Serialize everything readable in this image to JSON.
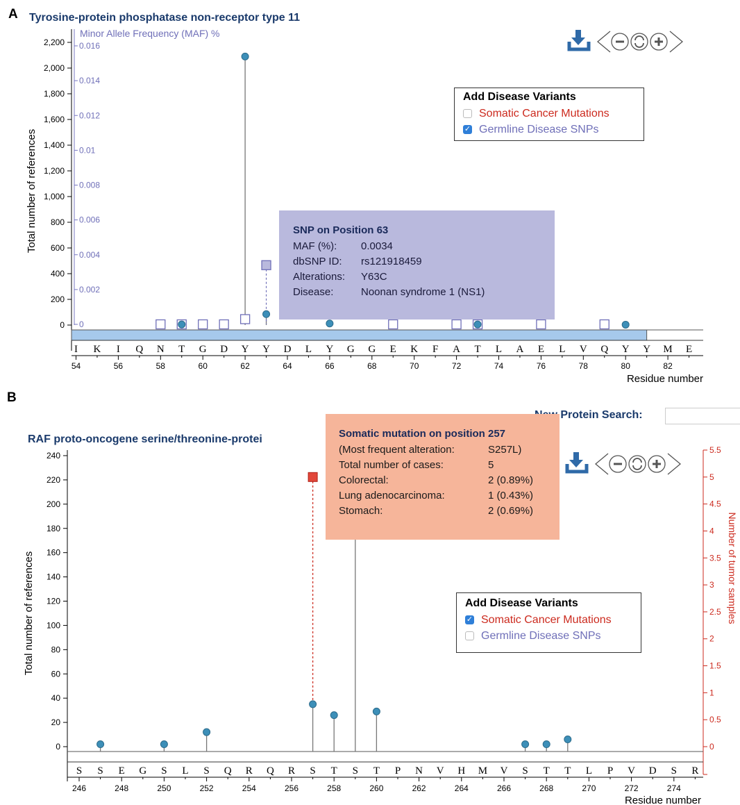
{
  "figure": {
    "panel_a_letter": "A",
    "panel_b_letter": "B"
  },
  "panel_a": {
    "title": "Tyrosine-protein phosphatase non-receptor type 11",
    "legend": {
      "title": "Add Disease Variants",
      "items": [
        {
          "label": "Somatic Cancer Mutations",
          "checked": false,
          "color": "#cc2a1e"
        },
        {
          "label": "Germline Disease SNPs",
          "checked": true,
          "color": "#6f6fb8"
        }
      ]
    },
    "tooltip": {
      "title": "SNP on Position 63",
      "rows": [
        {
          "key": "MAF (%):",
          "value": "0.0034"
        },
        {
          "key": "dbSNP ID:",
          "value": "rs121918459"
        },
        {
          "key": "Alterations:",
          "value": "Y63C"
        },
        {
          "key": "Disease:",
          "value": "Noonan syndrome 1 (NS1)"
        }
      ]
    },
    "toolbar": {
      "icons": [
        "download-icon",
        "pan-left-icon",
        "zoom-out-icon",
        "reset-icon",
        "zoom-in-icon",
        "pan-right-icon"
      ]
    }
  },
  "panel_b": {
    "title": "RAF proto-oncogene serine/threonine-protei",
    "search_label": "New Protein Search:",
    "search_value": "",
    "legend": {
      "title": "Add Disease Variants",
      "items": [
        {
          "label": "Somatic Cancer Mutations",
          "checked": true,
          "color": "#cc2a1e"
        },
        {
          "label": "Germline Disease SNPs",
          "checked": false,
          "color": "#6f6fb8"
        }
      ]
    },
    "tooltip": {
      "title": "Somatic mutation on position 257",
      "rows": [
        {
          "key": "(Most frequent alteration:",
          "value": "S257L)"
        },
        {
          "key": "Total number of cases:",
          "value": "5"
        },
        {
          "key": "Colorectal:",
          "value": "2 (0.89%)"
        },
        {
          "key": "Lung adenocarcinoma:",
          "value": "1 (0.43%)"
        },
        {
          "key": "Stomach:",
          "value": "2 (0.69%)"
        }
      ]
    },
    "toolbar": {
      "icons": [
        "download-icon",
        "pan-left-icon",
        "zoom-out-icon",
        "reset-icon",
        "zoom-in-icon",
        "pan-right-icon"
      ]
    }
  },
  "chart_data": [
    {
      "type": "scatter",
      "title": "Tyrosine-protein phosphatase non-receptor type 11",
      "ylabel": "Total number of references",
      "y2label": "Minor Allele Frequency (MAF) %",
      "xlabel": "Residue number",
      "ylim": [
        0,
        2200
      ],
      "y2lim": [
        0,
        0.016
      ],
      "xlim": [
        54,
        84
      ],
      "yticks": [
        0,
        200,
        400,
        600,
        800,
        1000,
        1200,
        1400,
        1600,
        1800,
        2000,
        2200
      ],
      "ytick_labels": [
        "0",
        "200",
        "400",
        "600",
        "800",
        "1,000",
        "1,200",
        "1,400",
        "1,600",
        "1,800",
        "2,000",
        "2,200"
      ],
      "y2ticks": [
        0,
        0.002,
        0.004,
        0.006,
        0.008,
        0.01,
        0.012,
        0.014,
        0.016
      ],
      "y2tick_labels": [
        "0",
        "0.002",
        "0.004",
        "0.006",
        "0.008",
        "0.01",
        "0.012",
        "0.014",
        "0.016"
      ],
      "xticks": [
        54,
        56,
        58,
        60,
        62,
        64,
        66,
        68,
        70,
        72,
        74,
        76,
        78,
        80,
        82
      ],
      "sequence_start": 54,
      "sequence": [
        "I",
        "K",
        "I",
        "Q",
        "N",
        "T",
        "G",
        "D",
        "Y",
        "Y",
        "D",
        "L",
        "Y",
        "G",
        "G",
        "E",
        "K",
        "F",
        "A",
        "T",
        "L",
        "A",
        "E",
        "L",
        "V",
        "Q",
        "Y",
        "Y",
        "M",
        "E"
      ],
      "domain_bar": {
        "start": 54,
        "end": 81
      },
      "series": [
        {
          "name": "References",
          "marker": "circle",
          "color": "#3d8fb8",
          "points": [
            {
              "x": 59,
              "y": 5
            },
            {
              "x": 62,
              "y": 2090
            },
            {
              "x": 63,
              "y": 85
            },
            {
              "x": 66,
              "y": 12
            },
            {
              "x": 73,
              "y": 5
            },
            {
              "x": 80,
              "y": 3
            }
          ]
        },
        {
          "name": "Germline Disease SNPs",
          "marker": "square",
          "color": "#6f6fb8",
          "points": [
            {
              "x": 58,
              "y2": 0
            },
            {
              "x": 59,
              "y2": 0
            },
            {
              "x": 60,
              "y2": 0
            },
            {
              "x": 61,
              "y2": 0
            },
            {
              "x": 62,
              "y2": 0.0003
            },
            {
              "x": 63,
              "y2": 0.0034,
              "highlight": true
            },
            {
              "x": 69,
              "y2": 0
            },
            {
              "x": 72,
              "y2": 0
            },
            {
              "x": 73,
              "y2": 0
            },
            {
              "x": 76,
              "y2": 0
            },
            {
              "x": 79,
              "y2": 0
            }
          ]
        }
      ]
    },
    {
      "type": "scatter",
      "title": "RAF proto-oncogene serine/threonine-protei",
      "ylabel": "Total number of references",
      "y2label": "Number of tumor samples",
      "xlabel": "Residue number",
      "ylim": [
        0,
        240
      ],
      "y2lim": [
        0,
        5.5
      ],
      "xlim": [
        245.5,
        275.5
      ],
      "yticks": [
        0,
        20,
        40,
        60,
        80,
        100,
        120,
        140,
        160,
        180,
        200,
        220,
        240
      ],
      "ytick_labels": [
        "0",
        "20",
        "40",
        "60",
        "80",
        "100",
        "120",
        "140",
        "160",
        "180",
        "200",
        "220",
        "240"
      ],
      "y2ticks": [
        0,
        0.5,
        1,
        1.5,
        2,
        2.5,
        3,
        3.5,
        4,
        4.5,
        5,
        5.5
      ],
      "y2tick_labels": [
        "0",
        "0.5",
        "1",
        "1.5",
        "2",
        "2.5",
        "3",
        "3.5",
        "4",
        "4.5",
        "5",
        "5.5"
      ],
      "xticks": [
        246,
        248,
        250,
        252,
        254,
        256,
        258,
        260,
        262,
        264,
        266,
        268,
        270,
        272,
        274
      ],
      "sequence_start": 246,
      "sequence": [
        "S",
        "S",
        "E",
        "G",
        "S",
        "L",
        "S",
        "Q",
        "R",
        "Q",
        "R",
        "S",
        "T",
        "S",
        "T",
        "P",
        "N",
        "V",
        "H",
        "M",
        "V",
        "S",
        "T",
        "T",
        "L",
        "P",
        "V",
        "D",
        "S",
        "R"
      ],
      "series": [
        {
          "name": "References",
          "marker": "circle",
          "color": "#3d8fb8",
          "points": [
            {
              "x": 247,
              "y": 2
            },
            {
              "x": 250,
              "y": 2
            },
            {
              "x": 252,
              "y": 12
            },
            {
              "x": 257,
              "y": 35
            },
            {
              "x": 258,
              "y": 26
            },
            {
              "x": 259,
              "y": 230
            },
            {
              "x": 260,
              "y": 29
            },
            {
              "x": 267,
              "y": 2
            },
            {
              "x": 268,
              "y": 2
            },
            {
              "x": 269,
              "y": 6
            }
          ]
        },
        {
          "name": "Somatic Cancer Mutations",
          "marker": "square",
          "color": "#cc2a1e",
          "points": [
            {
              "x": 257,
              "y2": 5,
              "highlight": true
            }
          ]
        }
      ]
    }
  ]
}
